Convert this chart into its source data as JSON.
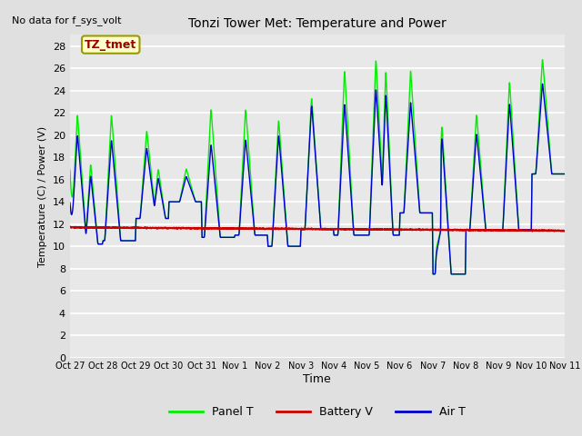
{
  "title": "Tonzi Tower Met: Temperature and Power",
  "top_left_text": "No data for f_sys_volt",
  "ylabel": "Temperature (C) / Power (V)",
  "xlabel": "Time",
  "legend_label": "TZ_tmet",
  "ylim": [
    0,
    29
  ],
  "yticks": [
    0,
    2,
    4,
    6,
    8,
    10,
    12,
    14,
    16,
    18,
    20,
    22,
    24,
    26,
    28
  ],
  "background_color": "#e0e0e0",
  "axes_facecolor": "#e8e8e8",
  "grid_color": "#ffffff",
  "line_green": "#00ee00",
  "line_red": "#cc0000",
  "line_blue": "#0000cc",
  "legend_items": [
    "Panel T",
    "Battery V",
    "Air T"
  ],
  "x_tick_labels": [
    "Oct 27",
    "Oct 28",
    "Oct 29",
    "Oct 30",
    "Oct 31",
    "Nov 1",
    "Nov 2",
    "Nov 3",
    "Nov 4",
    "Nov 5",
    "Nov 6",
    "Nov 7",
    "Nov 8",
    "Nov 9",
    "Nov 10",
    "Nov 11"
  ]
}
